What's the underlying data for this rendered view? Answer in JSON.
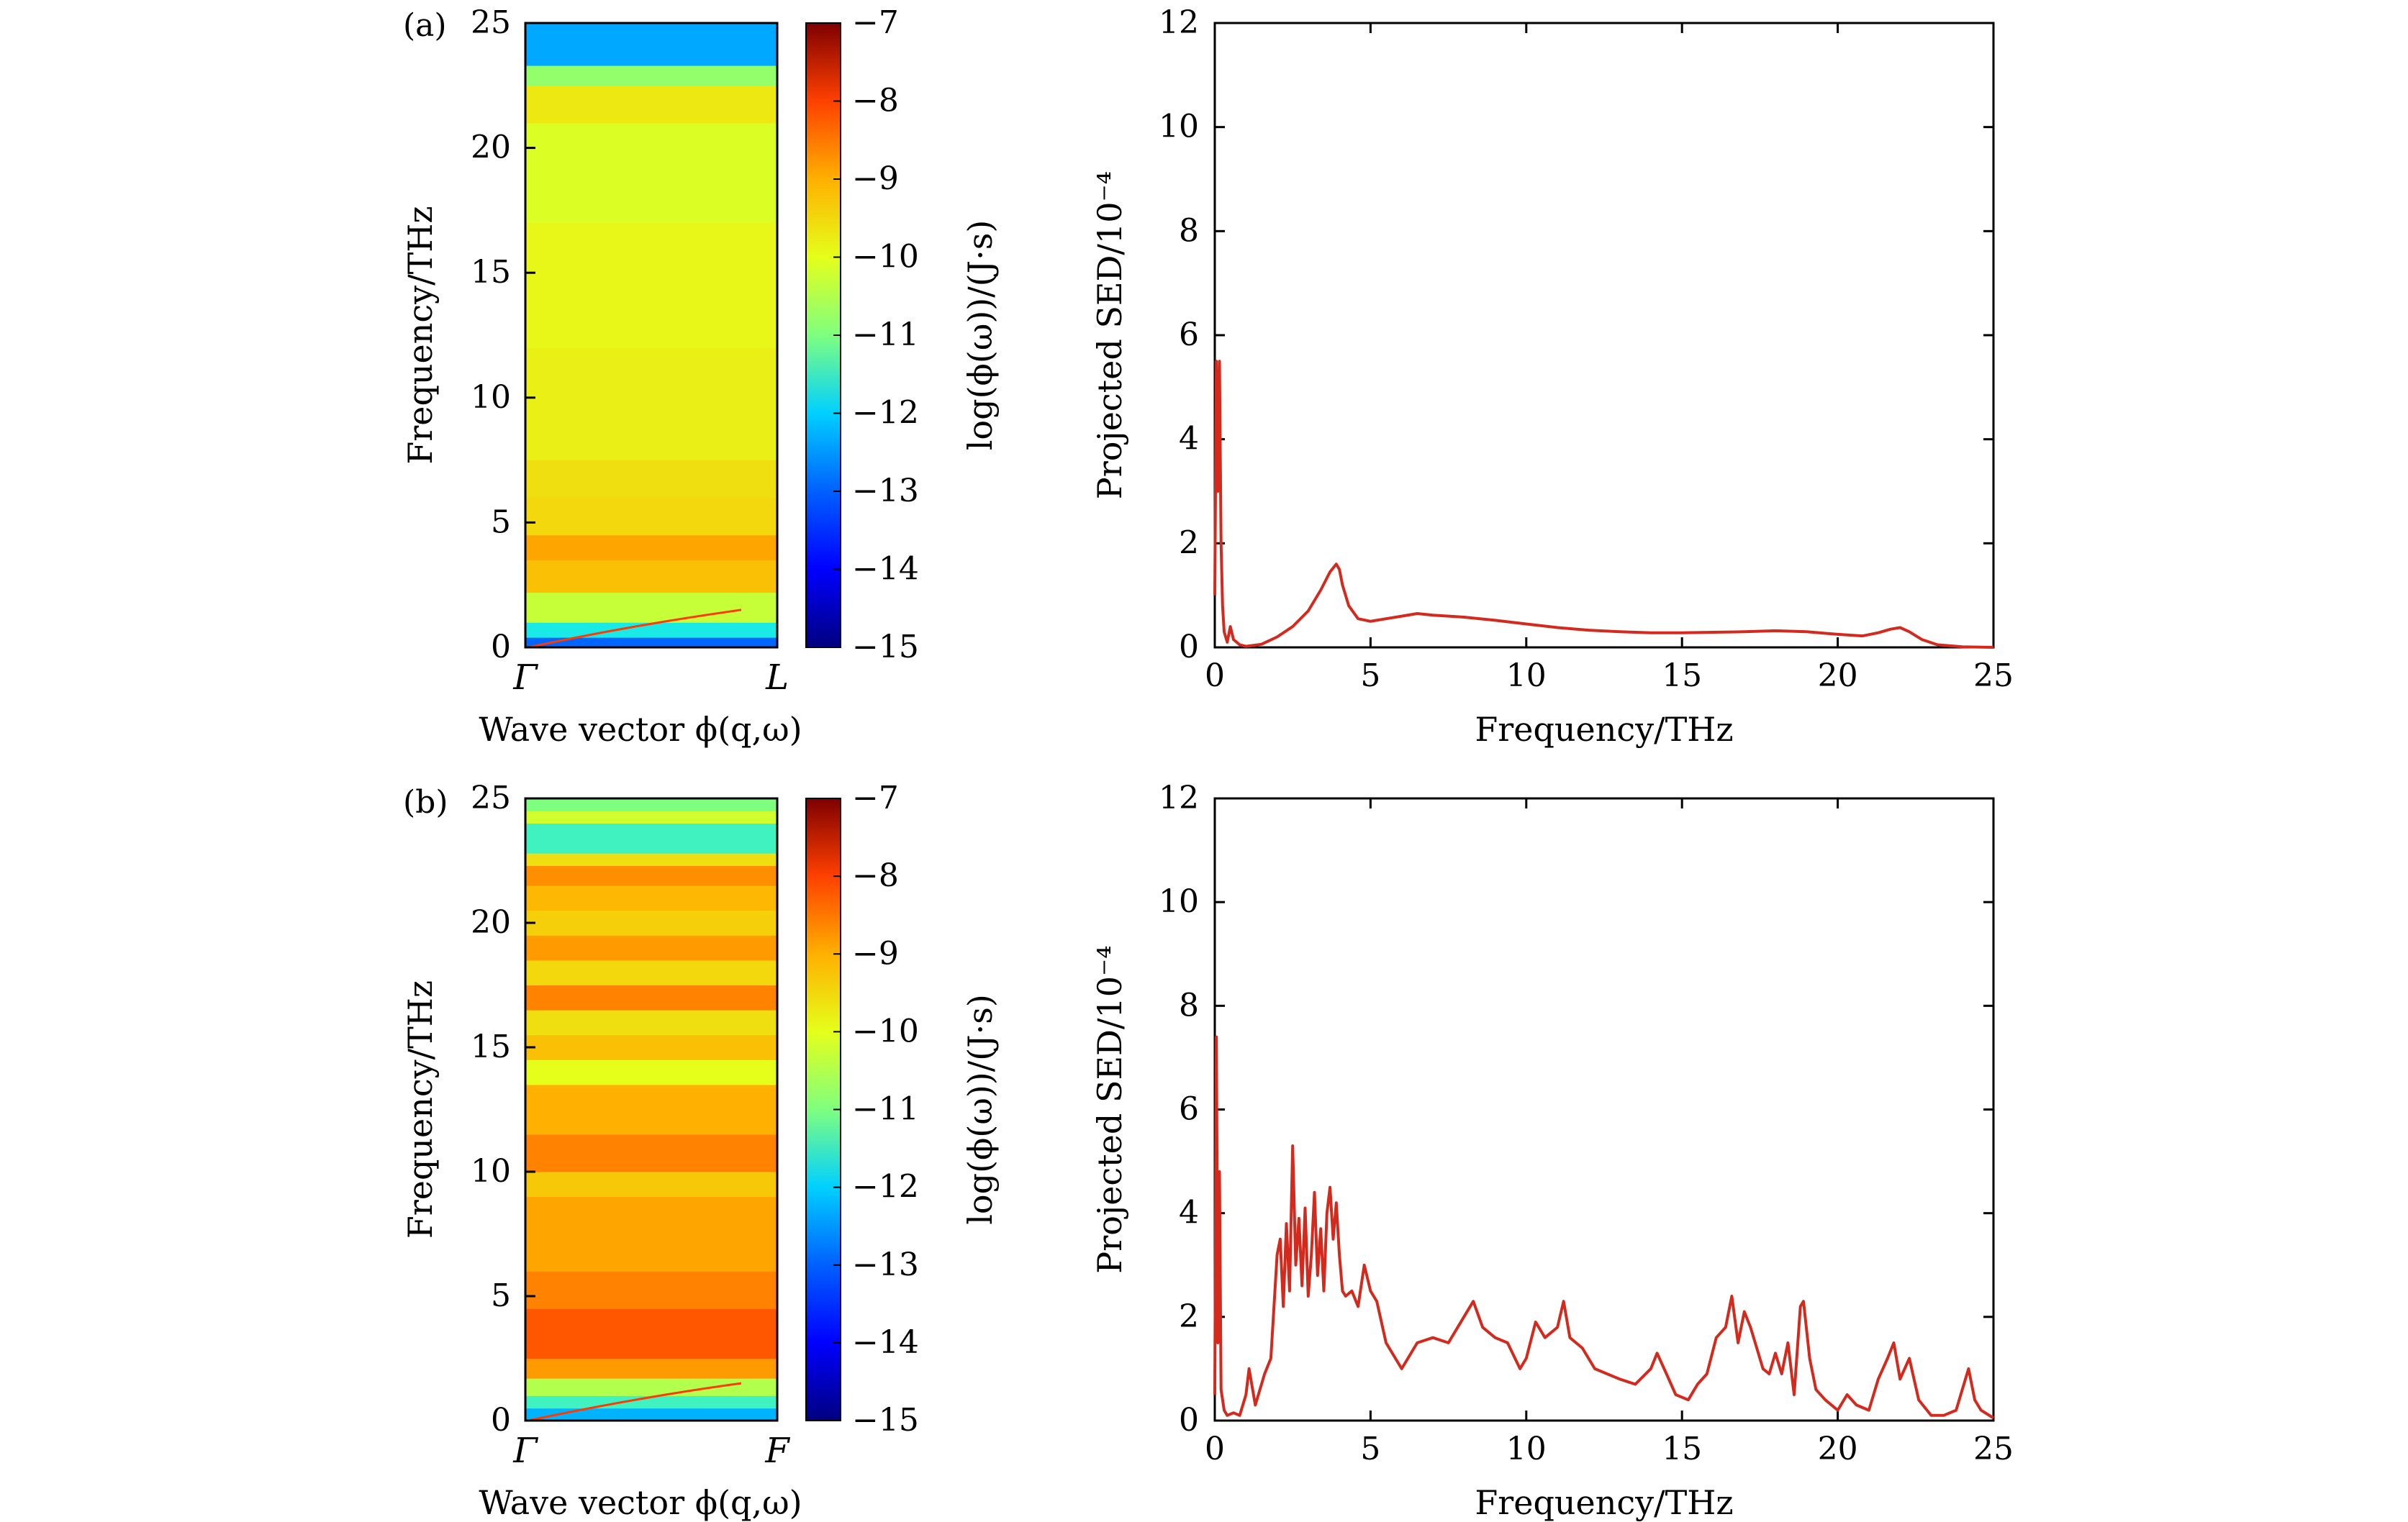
{
  "colors": {
    "sed_line": "#d42a1e",
    "frame": "#000000",
    "background": "#ffffff",
    "colormap": [
      "#00007f",
      "#0000ff",
      "#0080ff",
      "#00e5ff",
      "#7fff7f",
      "#e5ff1a",
      "#ffb000",
      "#ff4000",
      "#7f0000"
    ]
  },
  "panel_labels": [
    "(a)",
    "(b)"
  ],
  "chart_data": [
    {
      "type": "heatmap",
      "panel": "(a)",
      "xlabel": "Wave vector ϕ(q,ω)",
      "x_tick_labels": [
        "Γ",
        "L"
      ],
      "ylabel": "Frequency/THz",
      "ylim": [
        0,
        25
      ],
      "y_ticks": [
        0,
        5,
        10,
        15,
        20,
        25
      ],
      "colorbar_label": "log(ϕ(ω))/(J·s)",
      "colorbar_range": [
        -15,
        -7
      ],
      "colorbar_ticks": [
        "−7",
        "−8",
        "−9",
        "−10",
        "−11",
        "−12",
        "−13",
        "−14",
        "−15"
      ],
      "bands": [
        {
          "f0": 0,
          "f1": 0.4,
          "value": -13.2
        },
        {
          "f0": 0.4,
          "f1": 1.0,
          "value": -11.8
        },
        {
          "f0": 1.0,
          "f1": 2.2,
          "value": -10.3
        },
        {
          "f0": 2.2,
          "f1": 3.5,
          "value": -9.2
        },
        {
          "f0": 3.5,
          "f1": 4.5,
          "value": -8.9
        },
        {
          "f0": 4.5,
          "f1": 6.0,
          "value": -9.5
        },
        {
          "f0": 6.0,
          "f1": 7.5,
          "value": -9.6
        },
        {
          "f0": 7.5,
          "f1": 12.0,
          "value": -9.8
        },
        {
          "f0": 12.0,
          "f1": 17.0,
          "value": -9.9
        },
        {
          "f0": 17.0,
          "f1": 21.0,
          "value": -10.1
        },
        {
          "f0": 21.0,
          "f1": 22.5,
          "value": -9.7
        },
        {
          "f0": 22.5,
          "f1": 23.3,
          "value": -10.8
        },
        {
          "f0": 23.3,
          "f1": 25.0,
          "value": -12.6
        }
      ]
    },
    {
      "type": "line",
      "panel": "(a)",
      "xlabel": "Frequency/THz",
      "ylabel": "Projected SED/10⁻⁴",
      "xlim": [
        0,
        25
      ],
      "ylim": [
        0,
        12
      ],
      "x_ticks": [
        0,
        5,
        10,
        15,
        20,
        25
      ],
      "y_ticks": [
        0,
        2,
        4,
        6,
        8,
        10,
        12
      ],
      "series": [
        {
          "x": [
            0,
            0.05,
            0.1,
            0.15,
            0.2,
            0.25,
            0.3,
            0.4,
            0.5,
            0.6,
            0.8,
            1.0,
            1.5,
            2.0,
            2.5,
            3.0,
            3.4,
            3.7,
            3.9,
            4.0,
            4.1,
            4.3,
            4.6,
            5.0,
            5.5,
            6.0,
            6.5,
            7.0,
            8.0,
            9.0,
            10.0,
            11.0,
            12.0,
            13.0,
            14.0,
            15.0,
            16.0,
            17.0,
            18.0,
            19.0,
            20.0,
            20.8,
            21.3,
            21.7,
            22.0,
            22.3,
            22.7,
            23.2,
            24.0,
            25.0
          ],
          "y": [
            1.0,
            5.5,
            3.0,
            5.5,
            2.0,
            0.8,
            0.3,
            0.1,
            0.4,
            0.15,
            0.05,
            0.02,
            0.06,
            0.2,
            0.4,
            0.7,
            1.1,
            1.45,
            1.6,
            1.5,
            1.2,
            0.8,
            0.55,
            0.5,
            0.55,
            0.6,
            0.65,
            0.62,
            0.58,
            0.52,
            0.45,
            0.38,
            0.33,
            0.3,
            0.28,
            0.28,
            0.29,
            0.3,
            0.32,
            0.3,
            0.25,
            0.22,
            0.28,
            0.35,
            0.38,
            0.3,
            0.15,
            0.05,
            0.01,
            0.0
          ]
        }
      ]
    },
    {
      "type": "heatmap",
      "panel": "(b)",
      "xlabel": "Wave vector ϕ(q,ω)",
      "x_tick_labels": [
        "Γ",
        "F"
      ],
      "ylabel": "Frequency/THz",
      "ylim": [
        0,
        25
      ],
      "y_ticks": [
        0,
        5,
        10,
        15,
        20,
        25
      ],
      "colorbar_label": "log(ϕ(ω))/(J·s)",
      "colorbar_range": [
        -15,
        -7
      ],
      "colorbar_ticks": [
        "−7",
        "−8",
        "−9",
        "−10",
        "−11",
        "−12",
        "−13",
        "−14",
        "−15"
      ],
      "bands": [
        {
          "f0": 0,
          "f1": 0.5,
          "value": -12.5
        },
        {
          "f0": 0.5,
          "f1": 1.0,
          "value": -11.5
        },
        {
          "f0": 1.0,
          "f1": 1.7,
          "value": -10.5
        },
        {
          "f0": 1.7,
          "f1": 2.5,
          "value": -8.8
        },
        {
          "f0": 2.5,
          "f1": 4.5,
          "value": -8.2
        },
        {
          "f0": 4.5,
          "f1": 6.0,
          "value": -8.6
        },
        {
          "f0": 6.0,
          "f1": 9.0,
          "value": -8.9
        },
        {
          "f0": 9.0,
          "f1": 10.0,
          "value": -9.3
        },
        {
          "f0": 10.0,
          "f1": 11.5,
          "value": -8.6
        },
        {
          "f0": 11.5,
          "f1": 13.5,
          "value": -9.0
        },
        {
          "f0": 13.5,
          "f1": 14.5,
          "value": -10.0
        },
        {
          "f0": 14.5,
          "f1": 15.5,
          "value": -9.2
        },
        {
          "f0": 15.5,
          "f1": 16.5,
          "value": -9.6
        },
        {
          "f0": 16.5,
          "f1": 17.5,
          "value": -8.6
        },
        {
          "f0": 17.5,
          "f1": 18.5,
          "value": -9.5
        },
        {
          "f0": 18.5,
          "f1": 19.5,
          "value": -8.8
        },
        {
          "f0": 19.5,
          "f1": 20.5,
          "value": -9.4
        },
        {
          "f0": 20.5,
          "f1": 21.5,
          "value": -9.1
        },
        {
          "f0": 21.5,
          "f1": 22.3,
          "value": -8.7
        },
        {
          "f0": 22.3,
          "f1": 22.8,
          "value": -9.6
        },
        {
          "f0": 22.8,
          "f1": 24.0,
          "value": -11.5
        },
        {
          "f0": 24.0,
          "f1": 24.5,
          "value": -10.2
        },
        {
          "f0": 24.5,
          "f1": 25.0,
          "value": -11.0
        }
      ]
    },
    {
      "type": "line",
      "panel": "(b)",
      "xlabel": "Frequency/THz",
      "ylabel": "Projected SED/10⁻⁴",
      "xlim": [
        0,
        25
      ],
      "ylim": [
        0,
        12
      ],
      "x_ticks": [
        0,
        5,
        10,
        15,
        20,
        25
      ],
      "y_ticks": [
        0,
        2,
        4,
        6,
        8,
        10,
        12
      ],
      "series": [
        {
          "x": [
            0,
            0.05,
            0.1,
            0.15,
            0.2,
            0.3,
            0.4,
            0.6,
            0.8,
            1.0,
            1.1,
            1.3,
            1.6,
            1.8,
            2.0,
            2.1,
            2.2,
            2.3,
            2.4,
            2.5,
            2.6,
            2.7,
            2.8,
            2.9,
            3.0,
            3.1,
            3.2,
            3.3,
            3.4,
            3.5,
            3.6,
            3.7,
            3.8,
            3.9,
            4.0,
            4.1,
            4.2,
            4.4,
            4.6,
            4.8,
            5.0,
            5.2,
            5.5,
            5.8,
            6.0,
            6.5,
            7.0,
            7.5,
            8.0,
            8.3,
            8.6,
            9.0,
            9.4,
            9.8,
            10.0,
            10.3,
            10.6,
            11.0,
            11.2,
            11.4,
            11.8,
            12.2,
            12.6,
            13.0,
            13.5,
            14.0,
            14.2,
            14.5,
            14.8,
            15.2,
            15.5,
            15.8,
            16.1,
            16.4,
            16.6,
            16.8,
            17.0,
            17.2,
            17.4,
            17.6,
            17.8,
            18.0,
            18.2,
            18.4,
            18.6,
            18.8,
            18.9,
            19.1,
            19.3,
            19.6,
            20.0,
            20.3,
            20.6,
            21.0,
            21.3,
            21.6,
            21.8,
            22.0,
            22.3,
            22.6,
            23.0,
            23.4,
            23.8,
            24.0,
            24.2,
            24.4,
            24.6,
            25.0
          ],
          "y": [
            0.5,
            7.4,
            1.5,
            4.8,
            0.6,
            0.2,
            0.1,
            0.15,
            0.1,
            0.5,
            1.0,
            0.3,
            0.9,
            1.2,
            3.2,
            3.5,
            2.2,
            3.8,
            2.5,
            5.3,
            3.0,
            3.9,
            2.6,
            4.1,
            2.4,
            3.2,
            4.4,
            2.8,
            3.7,
            2.5,
            4.0,
            4.5,
            3.5,
            4.2,
            3.2,
            2.5,
            2.4,
            2.5,
            2.2,
            3.0,
            2.5,
            2.3,
            1.5,
            1.2,
            1.0,
            1.5,
            1.6,
            1.5,
            2.0,
            2.3,
            1.8,
            1.6,
            1.5,
            1.0,
            1.2,
            1.9,
            1.6,
            1.8,
            2.3,
            1.6,
            1.4,
            1.0,
            0.9,
            0.8,
            0.7,
            1.0,
            1.3,
            0.9,
            0.5,
            0.4,
            0.7,
            0.9,
            1.6,
            1.8,
            2.4,
            1.5,
            2.1,
            1.8,
            1.4,
            1.0,
            0.9,
            1.3,
            0.9,
            1.5,
            0.5,
            2.2,
            2.3,
            1.2,
            0.6,
            0.4,
            0.2,
            0.5,
            0.3,
            0.2,
            0.8,
            1.2,
            1.5,
            0.8,
            1.2,
            0.4,
            0.1,
            0.1,
            0.2,
            0.6,
            1.0,
            0.4,
            0.2,
            0.05
          ]
        }
      ]
    }
  ]
}
